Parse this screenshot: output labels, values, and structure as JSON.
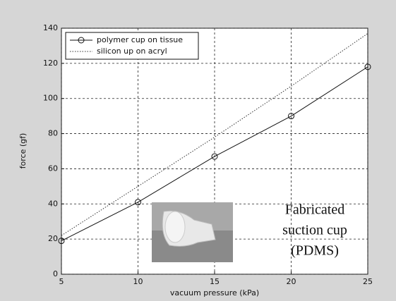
{
  "chart_data": {
    "type": "line",
    "x": [
      5,
      10,
      15,
      20,
      25
    ],
    "series": [
      {
        "name": "polymer cup on tissue",
        "color": "#111111",
        "marker": "o",
        "dash": "solid",
        "values": [
          19,
          41,
          67,
          90,
          118
        ]
      },
      {
        "name": "silicon up on acryl",
        "color": "#333333",
        "marker": "none",
        "dash": "dotted",
        "values": [
          22,
          50,
          78,
          107,
          137
        ]
      }
    ],
    "xlabel": "vacuum pressure (kPa)",
    "ylabel": "force (gf)",
    "xlim": [
      5,
      25
    ],
    "xticks": [
      5,
      10,
      15,
      20,
      25
    ],
    "ylim": [
      0,
      140
    ],
    "yticks": [
      0,
      20,
      40,
      60,
      80,
      100,
      120,
      140
    ],
    "grid": true,
    "legend": "upper left",
    "annotation_lines": [
      "Fabricated",
      "suction cup",
      "(PDMS)"
    ]
  }
}
